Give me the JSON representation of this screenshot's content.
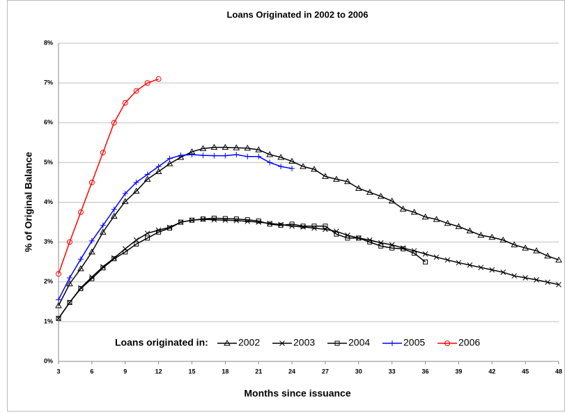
{
  "chart_data": {
    "type": "line",
    "title": "Loans Originated in 2002 to 2006",
    "x_label": "Months since issuance",
    "y_label": "% of Original Balance",
    "legend_title": "Loans originated in:",
    "x": [
      3,
      4,
      5,
      6,
      7,
      8,
      9,
      10,
      11,
      12,
      13,
      14,
      15,
      16,
      17,
      18,
      19,
      20,
      21,
      22,
      23,
      24,
      25,
      26,
      27,
      28,
      29,
      30,
      31,
      32,
      33,
      34,
      35,
      36,
      37,
      38,
      39,
      40,
      41,
      42,
      43,
      44,
      45,
      46,
      47,
      48
    ],
    "series": [
      {
        "name": "2002",
        "color": "#000000",
        "marker": "triangle",
        "values": [
          1.4,
          1.95,
          2.33,
          2.75,
          3.25,
          3.65,
          4.02,
          4.28,
          4.58,
          4.77,
          4.97,
          5.13,
          5.27,
          5.35,
          5.38,
          5.38,
          5.37,
          5.36,
          5.32,
          5.2,
          5.13,
          5.03,
          4.9,
          4.83,
          4.65,
          4.58,
          4.52,
          4.35,
          4.25,
          4.15,
          4.03,
          3.83,
          3.75,
          3.63,
          3.57,
          3.47,
          3.39,
          3.28,
          3.17,
          3.12,
          3.05,
          2.93,
          2.85,
          2.78,
          2.65,
          2.55
        ]
      },
      {
        "name": "2003",
        "color": "#000000",
        "marker": "x",
        "values": [
          1.08,
          1.48,
          1.85,
          2.12,
          2.38,
          2.6,
          2.83,
          3.05,
          3.22,
          3.3,
          3.37,
          3.5,
          3.55,
          3.57,
          3.56,
          3.55,
          3.54,
          3.52,
          3.5,
          3.47,
          3.44,
          3.4,
          3.38,
          3.35,
          3.32,
          3.27,
          3.17,
          3.1,
          3.05,
          2.98,
          2.93,
          2.85,
          2.78,
          2.7,
          2.62,
          2.55,
          2.48,
          2.42,
          2.36,
          2.3,
          2.24,
          2.15,
          2.1,
          2.05,
          1.99,
          1.93
        ]
      },
      {
        "name": "2004",
        "color": "#000000",
        "marker": "square",
        "values": [
          1.08,
          1.48,
          1.83,
          2.08,
          2.35,
          2.58,
          2.75,
          2.95,
          3.1,
          3.25,
          3.35,
          3.5,
          3.55,
          3.58,
          3.6,
          3.59,
          3.58,
          3.56,
          3.53,
          3.45,
          3.42,
          3.45,
          3.4,
          3.4,
          3.4,
          3.2,
          3.1,
          3.1,
          3.0,
          2.9,
          2.85,
          2.83,
          2.72,
          2.5,
          null,
          null,
          null,
          null,
          null,
          null,
          null,
          null,
          null,
          null,
          null,
          null
        ]
      },
      {
        "name": "2005",
        "color": "#0000ff",
        "marker": "plus",
        "values": [
          1.55,
          2.1,
          2.57,
          3.03,
          3.42,
          3.82,
          4.22,
          4.5,
          4.7,
          4.9,
          5.1,
          5.18,
          5.2,
          5.18,
          5.17,
          5.17,
          5.2,
          5.15,
          5.15,
          5.0,
          4.9,
          4.85,
          null,
          null,
          null,
          null,
          null,
          null,
          null,
          null,
          null,
          null,
          null,
          null,
          null,
          null,
          null,
          null,
          null,
          null,
          null,
          null,
          null,
          null,
          null,
          null
        ]
      },
      {
        "name": "2006",
        "color": "#ff0000",
        "marker": "circle",
        "values": [
          2.2,
          3.0,
          3.75,
          4.5,
          5.25,
          6.0,
          6.5,
          6.8,
          7.0,
          7.1,
          null,
          null,
          null,
          null,
          null,
          null,
          null,
          null,
          null,
          null,
          null,
          null,
          null,
          null,
          null,
          null,
          null,
          null,
          null,
          null,
          null,
          null,
          null,
          null,
          null,
          null,
          null,
          null,
          null,
          null,
          null,
          null,
          null,
          null,
          null,
          null
        ]
      }
    ],
    "xlim": [
      3,
      48
    ],
    "xticks": [
      3,
      6,
      9,
      12,
      15,
      18,
      21,
      24,
      27,
      30,
      33,
      36,
      39,
      42,
      45,
      48
    ],
    "ylim": [
      0,
      8
    ],
    "yticks": [
      {
        "value": 0,
        "label": "0%"
      },
      {
        "value": 1,
        "label": "1%"
      },
      {
        "value": 2,
        "label": "2%"
      },
      {
        "value": 3,
        "label": "3%"
      },
      {
        "value": 4,
        "label": "4%"
      },
      {
        "value": 5,
        "label": "5%"
      },
      {
        "value": 6,
        "label": "6%"
      },
      {
        "value": 7,
        "label": "7%"
      },
      {
        "value": 8,
        "label": "8%"
      }
    ],
    "grid": true
  }
}
